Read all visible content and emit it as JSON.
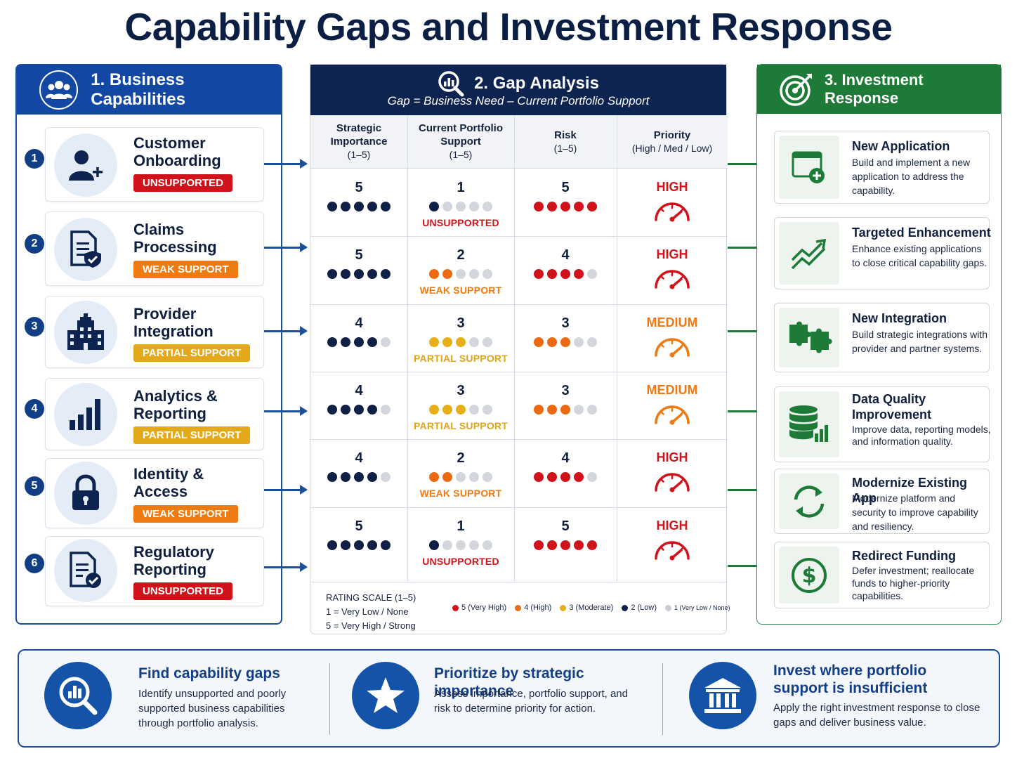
{
  "title": "Capability Gaps and Investment Response",
  "panel1": {
    "heading": "1. Business Capabilities",
    "icon": "people-group-icon",
    "capabilities": [
      {
        "num": "1",
        "title": "Customer Onboarding",
        "badge": "UNSUPPORTED",
        "icon": "person-add-icon"
      },
      {
        "num": "2",
        "title": "Claims Processing",
        "badge": "WEAK SUPPORT",
        "icon": "document-shield-icon"
      },
      {
        "num": "3",
        "title": "Provider Integration",
        "badge": "PARTIAL SUPPORT",
        "icon": "hospital-building-icon"
      },
      {
        "num": "4",
        "title": "Analytics & Reporting",
        "badge": "PARTIAL SUPPORT",
        "icon": "bar-chart-icon"
      },
      {
        "num": "5",
        "title": "Identity & Access",
        "badge": "WEAK SUPPORT",
        "icon": "padlock-icon"
      },
      {
        "num": "6",
        "title": "Regulatory Reporting",
        "badge": "UNSUPPORTED",
        "icon": "document-check-icon"
      }
    ]
  },
  "panel2": {
    "heading": "2. Gap Analysis",
    "subheading": "Gap = Business Need – Current Portfolio Support",
    "icon": "magnifier-chart-icon",
    "columns": [
      {
        "title": "Strategic Importance",
        "sub": "(1–5)"
      },
      {
        "title": "Current Portfolio Support",
        "sub": "(1–5)"
      },
      {
        "title": "Risk",
        "sub": "(1–5)"
      },
      {
        "title": "Priority",
        "sub": "(High / Med / Low)"
      }
    ],
    "rows": [
      {
        "importance": "5",
        "support": "1",
        "support_label": "UNSUPPORTED",
        "risk": "5",
        "priority": "HIGH"
      },
      {
        "importance": "5",
        "support": "2",
        "support_label": "WEAK SUPPORT",
        "risk": "4",
        "priority": "HIGH"
      },
      {
        "importance": "4",
        "support": "3",
        "support_label": "PARTIAL SUPPORT",
        "risk": "3",
        "priority": "MEDIUM"
      },
      {
        "importance": "4",
        "support": "3",
        "support_label": "PARTIAL SUPPORT",
        "risk": "3",
        "priority": "MEDIUM"
      },
      {
        "importance": "4",
        "support": "2",
        "support_label": "WEAK SUPPORT",
        "risk": "4",
        "priority": "HIGH"
      },
      {
        "importance": "5",
        "support": "1",
        "support_label": "UNSUPPORTED",
        "risk": "5",
        "priority": "HIGH"
      }
    ],
    "legend": {
      "title": "RATING SCALE (1–5)",
      "line1": "1 = Very Low / None",
      "line2": "5 = Very High / Strong",
      "items": [
        {
          "label": "5 (Very High)",
          "color": "#d0121b"
        },
        {
          "label": "4 (High)",
          "color": "#ee6a12"
        },
        {
          "label": "3 (Moderate)",
          "color": "#e6ae17"
        },
        {
          "label": "2 (Low)",
          "color": "#0f1f45"
        },
        {
          "label": "1 (Very Low / None)",
          "color": "#c9ccd2"
        }
      ]
    }
  },
  "panel3": {
    "heading": "3. Investment Response",
    "icon": "target-arrow-icon",
    "items": [
      {
        "title": "New Application",
        "text": "Build and implement a new application to address the capability.",
        "icon": "app-window-plus-icon"
      },
      {
        "title": "Targeted Enhancement",
        "text": "Enhance existing applications to close critical capability gaps.",
        "icon": "trend-up-icon"
      },
      {
        "title": "New Integration",
        "text": "Build strategic integrations with provider and partner systems.",
        "icon": "puzzle-icon"
      },
      {
        "title": "Data Quality Improvement",
        "text": "Improve data, reporting models, and information quality.",
        "icon": "database-chart-icon"
      },
      {
        "title": "Modernize Existing App",
        "text": "Modernize platform and security to improve capability and resiliency.",
        "icon": "refresh-arrows-icon"
      },
      {
        "title": "Redirect Funding",
        "text": "Defer investment; reallocate funds to higher-priority capabilities.",
        "icon": "dollar-circle-icon"
      }
    ]
  },
  "bottom": [
    {
      "title": "Find capability gaps",
      "text": "Identify unsupported and poorly supported business capabilities through portfolio analysis.",
      "icon": "magnifier-chart-icon"
    },
    {
      "title": "Prioritize by strategic importance",
      "text": "Assess importance, portfolio support, and risk to determine priority for action.",
      "icon": "star-icon"
    },
    {
      "title": "Invest where portfolio support is insufficient",
      "text": "Apply the right investment response to close gaps and deliver business value.",
      "icon": "bank-building-icon"
    }
  ],
  "colors": {
    "navy": "#0d2450",
    "blue": "#1248a3",
    "green": "#1d7a37",
    "red": "#d0121b",
    "orange": "#ee6a12",
    "yellow": "#e6ae17"
  }
}
